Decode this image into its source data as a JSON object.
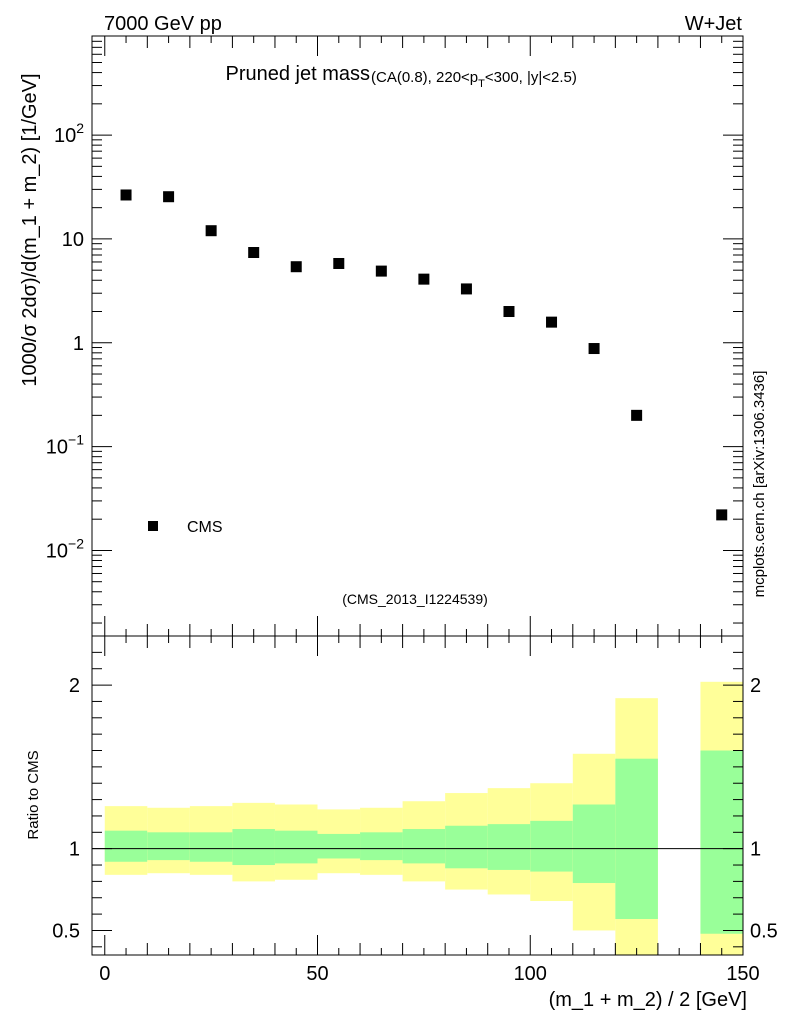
{
  "header": {
    "left": "7000 GeV pp",
    "right": "W+Jet"
  },
  "side_label": "mcplots.cern.ch [arXiv:1306.3436]",
  "chart_data": [
    {
      "type": "scatter",
      "title_main": "Pruned jet mass",
      "title_sub_a": "(CA(0.8), 220<p",
      "title_sub_sub": "T",
      "title_sub_b": "<300, |y|<2.5)",
      "ylabel": "1000/σ 2dσ)/d(m_1 + m_2) [1/GeV]",
      "yscale": "log",
      "ylim": [
        0.0015,
        900
      ],
      "xlim": [
        -3,
        150
      ],
      "yticks": [
        {
          "value": 100,
          "base": "10",
          "exp": "2"
        },
        {
          "value": 10,
          "base": "10",
          "exp": ""
        },
        {
          "value": 1,
          "base": "1",
          "exp": ""
        },
        {
          "value": 0.1,
          "base": "10",
          "exp": "−1"
        },
        {
          "value": 0.01,
          "base": "10",
          "exp": "−2"
        }
      ],
      "legend": {
        "label": "CMS",
        "position": "lower-left"
      },
      "analysis_id": "(CMS_2013_I1224539)",
      "series": [
        {
          "name": "CMS",
          "x": [
            5,
            15,
            25,
            35,
            45,
            55,
            65,
            75,
            85,
            95,
            105,
            115,
            125,
            145
          ],
          "y": [
            26.5,
            25.5,
            12.0,
            7.4,
            5.4,
            5.8,
            4.9,
            4.1,
            3.3,
            2.0,
            1.58,
            0.88,
            0.2,
            0.022
          ]
        }
      ]
    },
    {
      "type": "area",
      "ylabel": "Ratio to CMS",
      "xlabel": "(m_1 + m_2) / 2 [GeV]",
      "ylim": [
        0.35,
        2.3
      ],
      "xlim": [
        -3,
        150
      ],
      "xticks": [
        0,
        50,
        100,
        150
      ],
      "yticks": [
        0.5,
        1,
        2
      ],
      "reference_line": 1,
      "bins": [
        {
          "lo": 0,
          "hi": 10,
          "in_lo": 0.92,
          "in_hi": 1.11,
          "out_lo": 0.84,
          "out_hi": 1.26
        },
        {
          "lo": 10,
          "hi": 20,
          "in_lo": 0.93,
          "in_hi": 1.1,
          "out_lo": 0.85,
          "out_hi": 1.25
        },
        {
          "lo": 20,
          "hi": 30,
          "in_lo": 0.92,
          "in_hi": 1.1,
          "out_lo": 0.84,
          "out_hi": 1.26
        },
        {
          "lo": 30,
          "hi": 40,
          "in_lo": 0.9,
          "in_hi": 1.12,
          "out_lo": 0.8,
          "out_hi": 1.28
        },
        {
          "lo": 40,
          "hi": 50,
          "in_lo": 0.91,
          "in_hi": 1.11,
          "out_lo": 0.81,
          "out_hi": 1.27
        },
        {
          "lo": 50,
          "hi": 60,
          "in_lo": 0.94,
          "in_hi": 1.09,
          "out_lo": 0.85,
          "out_hi": 1.24
        },
        {
          "lo": 60,
          "hi": 70,
          "in_lo": 0.93,
          "in_hi": 1.1,
          "out_lo": 0.84,
          "out_hi": 1.25
        },
        {
          "lo": 70,
          "hi": 80,
          "in_lo": 0.91,
          "in_hi": 1.12,
          "out_lo": 0.8,
          "out_hi": 1.29
        },
        {
          "lo": 80,
          "hi": 90,
          "in_lo": 0.88,
          "in_hi": 1.14,
          "out_lo": 0.75,
          "out_hi": 1.34
        },
        {
          "lo": 90,
          "hi": 100,
          "in_lo": 0.87,
          "in_hi": 1.15,
          "out_lo": 0.72,
          "out_hi": 1.37
        },
        {
          "lo": 100,
          "hi": 110,
          "in_lo": 0.86,
          "in_hi": 1.17,
          "out_lo": 0.68,
          "out_hi": 1.4
        },
        {
          "lo": 110,
          "hi": 120,
          "in_lo": 0.79,
          "in_hi": 1.27,
          "out_lo": 0.5,
          "out_hi": 1.58
        },
        {
          "lo": 120,
          "hi": 130,
          "in_lo": 0.57,
          "in_hi": 1.55,
          "out_lo": 0.35,
          "out_hi": 1.92
        },
        {
          "lo": 140,
          "hi": 150,
          "in_lo": 0.48,
          "in_hi": 1.6,
          "out_lo": 0.35,
          "out_hi": 2.02
        }
      ]
    }
  ],
  "colors": {
    "inner_band": "#99ff99",
    "outer_band": "#ffff99",
    "marker": "#000000",
    "watermark": "#808080"
  }
}
